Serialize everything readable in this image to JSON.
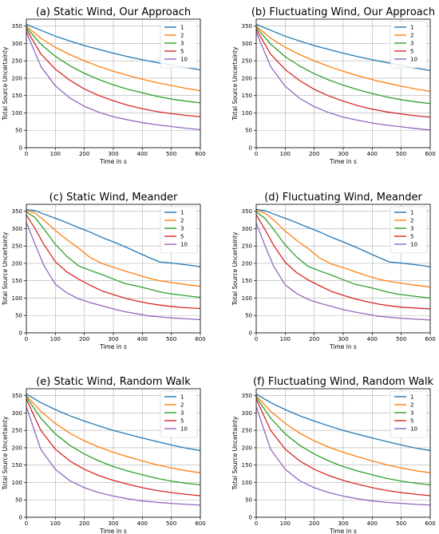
{
  "series_colors": [
    "#1f77b4",
    "#ff7f0e",
    "#2ca02c",
    "#d62728",
    "#9467bd"
  ],
  "chart_data": [
    {
      "type": "line",
      "title": "(a) Static Wind, Our Approach",
      "xlabel": "Time in s",
      "ylabel": "Total Source Uncertainty",
      "xlim": [
        0,
        600
      ],
      "ylim": [
        0,
        370
      ],
      "xticks": [
        0,
        100,
        200,
        300,
        400,
        500,
        600
      ],
      "yticks": [
        0,
        50,
        100,
        150,
        200,
        250,
        300,
        350
      ],
      "grid": true,
      "legend_position": "top-right",
      "x": [
        0,
        50,
        100,
        150,
        200,
        250,
        300,
        350,
        400,
        450,
        500,
        550,
        600
      ],
      "series": [
        {
          "name": "1",
          "values": [
            355,
            338,
            321,
            307,
            294,
            283,
            272,
            262,
            253,
            245,
            238,
            231,
            224
          ]
        },
        {
          "name": "2",
          "values": [
            350,
            315,
            289,
            268,
            250,
            234,
            220,
            208,
            197,
            187,
            179,
            171,
            164
          ]
        },
        {
          "name": "3",
          "values": [
            346,
            298,
            263,
            236,
            214,
            196,
            181,
            168,
            158,
            148,
            140,
            134,
            129
          ]
        },
        {
          "name": "5",
          "values": [
            341,
            270,
            226,
            194,
            169,
            150,
            135,
            122,
            112,
            104,
            98,
            93,
            89
          ]
        },
        {
          "name": "10",
          "values": [
            333,
            234,
            178,
            143,
            119,
            102,
            89,
            80,
            72,
            66,
            61,
            56,
            52
          ]
        }
      ]
    },
    {
      "type": "line",
      "title": "(b) Fluctuating Wind, Our Approach",
      "xlabel": "Time in s",
      "ylabel": "Total Source Uncertainty",
      "xlim": [
        0,
        600
      ],
      "ylim": [
        0,
        370
      ],
      "xticks": [
        0,
        100,
        200,
        300,
        400,
        500,
        600
      ],
      "yticks": [
        0,
        50,
        100,
        150,
        200,
        250,
        300,
        350
      ],
      "grid": true,
      "legend_position": "top-right",
      "x": [
        0,
        50,
        100,
        150,
        200,
        250,
        300,
        350,
        400,
        450,
        500,
        550,
        600
      ],
      "series": [
        {
          "name": "1",
          "values": [
            355,
            338,
            321,
            307,
            294,
            283,
            272,
            262,
            253,
            245,
            237,
            229,
            222
          ]
        },
        {
          "name": "2",
          "values": [
            350,
            315,
            289,
            268,
            250,
            234,
            220,
            207,
            196,
            186,
            177,
            169,
            162
          ]
        },
        {
          "name": "3",
          "values": [
            346,
            298,
            262,
            235,
            213,
            195,
            180,
            167,
            156,
            146,
            138,
            132,
            127
          ]
        },
        {
          "name": "5",
          "values": [
            341,
            269,
            225,
            193,
            168,
            149,
            134,
            121,
            111,
            103,
            97,
            92,
            88
          ]
        },
        {
          "name": "10",
          "values": [
            333,
            233,
            177,
            142,
            118,
            101,
            88,
            79,
            71,
            65,
            60,
            55,
            51
          ]
        }
      ]
    },
    {
      "type": "line",
      "title": "(c) Static Wind, Meander",
      "xlabel": "Time in s",
      "ylabel": "Total Source Uncertainty",
      "xlim": [
        0,
        600
      ],
      "ylim": [
        0,
        370
      ],
      "xticks": [
        0,
        100,
        200,
        300,
        400,
        500,
        600
      ],
      "yticks": [
        0,
        50,
        100,
        150,
        200,
        250,
        300,
        350
      ],
      "grid": true,
      "legend_position": "top-right",
      "x": [
        0,
        30,
        60,
        100,
        140,
        180,
        220,
        260,
        300,
        340,
        380,
        420,
        460,
        500,
        540,
        580,
        600
      ],
      "series": [
        {
          "name": "1",
          "values": [
            355,
            352,
            342,
            330,
            317,
            303,
            290,
            275,
            262,
            248,
            233,
            218,
            204,
            201,
            197,
            193,
            190
          ]
        },
        {
          "name": "2",
          "values": [
            352,
            345,
            325,
            295,
            268,
            244,
            217,
            200,
            189,
            178,
            168,
            158,
            150,
            145,
            140,
            136,
            134
          ]
        },
        {
          "name": "3",
          "values": [
            348,
            332,
            300,
            255,
            220,
            193,
            180,
            168,
            155,
            142,
            135,
            127,
            118,
            112,
            108,
            104,
            102
          ]
        },
        {
          "name": "5",
          "values": [
            340,
            300,
            255,
            205,
            175,
            155,
            137,
            121,
            110,
            100,
            92,
            85,
            80,
            76,
            73,
            71,
            70
          ]
        },
        {
          "name": "10",
          "values": [
            318,
            255,
            195,
            140,
            115,
            98,
            87,
            78,
            69,
            61,
            55,
            49,
            46,
            43,
            41,
            39,
            38
          ]
        }
      ]
    },
    {
      "type": "line",
      "title": "(d) Fluctuating Wind, Meander",
      "xlabel": "Time in s",
      "ylabel": "Total Source Uncertainty",
      "xlim": [
        0,
        600
      ],
      "ylim": [
        0,
        370
      ],
      "xticks": [
        0,
        100,
        200,
        300,
        400,
        500,
        600
      ],
      "yticks": [
        0,
        50,
        100,
        150,
        200,
        250,
        300,
        350
      ],
      "grid": true,
      "legend_position": "top-right",
      "x": [
        0,
        30,
        60,
        100,
        140,
        180,
        220,
        260,
        300,
        340,
        380,
        420,
        460,
        500,
        540,
        580,
        600
      ],
      "series": [
        {
          "name": "1",
          "values": [
            355,
            352,
            342,
            330,
            317,
            303,
            290,
            275,
            262,
            248,
            233,
            218,
            204,
            201,
            197,
            193,
            190
          ]
        },
        {
          "name": "2",
          "values": [
            352,
            345,
            325,
            293,
            266,
            242,
            215,
            198,
            188,
            176,
            165,
            155,
            148,
            143,
            138,
            134,
            132
          ]
        },
        {
          "name": "3",
          "values": [
            348,
            330,
            298,
            253,
            218,
            191,
            178,
            166,
            153,
            140,
            133,
            125,
            116,
            110,
            106,
            102,
            100
          ]
        },
        {
          "name": "5",
          "values": [
            340,
            298,
            252,
            203,
            173,
            152,
            135,
            119,
            108,
            98,
            90,
            83,
            78,
            74,
            72,
            70,
            69
          ]
        },
        {
          "name": "10",
          "values": [
            316,
            252,
            192,
            138,
            113,
            96,
            85,
            76,
            67,
            60,
            54,
            48,
            45,
            42,
            40,
            38,
            37
          ]
        }
      ]
    },
    {
      "type": "line",
      "title": "(e) Static Wind, Random Walk",
      "xlabel": "Time in s",
      "ylabel": "Total Source Uncertainty",
      "xlim": [
        0,
        600
      ],
      "ylim": [
        0,
        370
      ],
      "xticks": [
        0,
        100,
        200,
        300,
        400,
        500,
        600
      ],
      "yticks": [
        0,
        50,
        100,
        150,
        200,
        250,
        300,
        350
      ],
      "grid": true,
      "legend_position": "top-right",
      "x": [
        0,
        50,
        100,
        150,
        200,
        250,
        300,
        350,
        400,
        450,
        500,
        550,
        600
      ],
      "series": [
        {
          "name": "1",
          "values": [
            355,
            330,
            310,
            292,
            277,
            263,
            250,
            239,
            228,
            218,
            208,
            199,
            192
          ]
        },
        {
          "name": "2",
          "values": [
            350,
            305,
            270,
            242,
            220,
            202,
            187,
            174,
            162,
            151,
            142,
            134,
            128
          ]
        },
        {
          "name": "3",
          "values": [
            346,
            285,
            240,
            207,
            182,
            162,
            146,
            133,
            122,
            112,
            104,
            98,
            93
          ]
        },
        {
          "name": "5",
          "values": [
            340,
            250,
            196,
            162,
            138,
            120,
            106,
            95,
            85,
            77,
            71,
            66,
            62
          ]
        },
        {
          "name": "10",
          "values": [
            318,
            195,
            138,
            105,
            85,
            71,
            61,
            53,
            47,
            43,
            40,
            37,
            35
          ]
        }
      ]
    },
    {
      "type": "line",
      "title": "(f) Fluctuating Wind, Random Walk",
      "xlabel": "Time in s",
      "ylabel": "Total Source Uncertainty",
      "xlim": [
        0,
        600
      ],
      "ylim": [
        0,
        370
      ],
      "xticks": [
        0,
        100,
        200,
        300,
        400,
        500,
        600
      ],
      "yticks": [
        0,
        50,
        100,
        150,
        200,
        250,
        300,
        350
      ],
      "grid": true,
      "legend_position": "top-right",
      "x": [
        0,
        50,
        100,
        150,
        200,
        250,
        300,
        350,
        400,
        450,
        500,
        550,
        600
      ],
      "series": [
        {
          "name": "1",
          "values": [
            355,
            330,
            310,
            292,
            277,
            263,
            250,
            239,
            228,
            218,
            208,
            199,
            192
          ]
        },
        {
          "name": "2",
          "values": [
            350,
            305,
            270,
            242,
            220,
            202,
            187,
            174,
            162,
            151,
            142,
            134,
            128
          ]
        },
        {
          "name": "3",
          "values": [
            346,
            285,
            240,
            207,
            182,
            162,
            146,
            133,
            122,
            112,
            104,
            98,
            93
          ]
        },
        {
          "name": "5",
          "values": [
            340,
            250,
            196,
            162,
            138,
            120,
            106,
            95,
            85,
            77,
            71,
            66,
            62
          ]
        },
        {
          "name": "10",
          "values": [
            318,
            195,
            138,
            105,
            85,
            71,
            61,
            53,
            47,
            43,
            40,
            37,
            35
          ]
        }
      ]
    }
  ]
}
